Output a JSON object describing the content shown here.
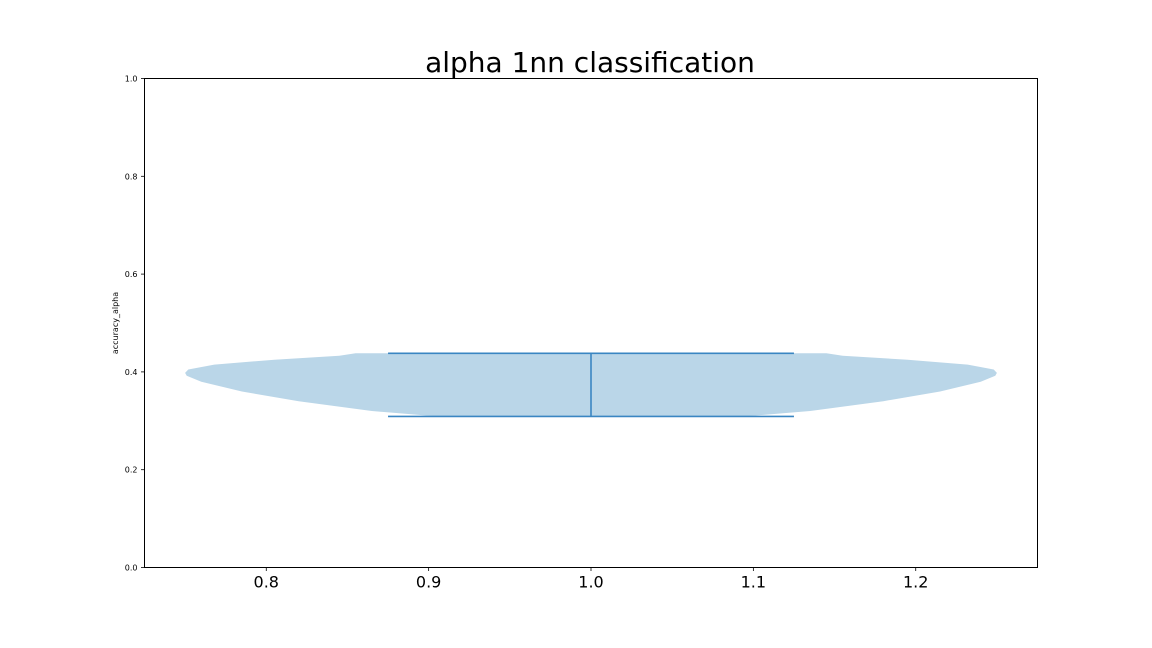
{
  "chart_data": {
    "type": "violin",
    "title": "alpha 1nn classification",
    "xlabel": "",
    "ylabel": "accuracy_alpha",
    "xlim": [
      0.725,
      1.275
    ],
    "ylim": [
      0.0,
      1.0
    ],
    "xticks": [
      0.8,
      0.9,
      1.0,
      1.1,
      1.2
    ],
    "xtick_labels": [
      "0.8",
      "0.9",
      "1.0",
      "1.1",
      "1.2"
    ],
    "yticks": [
      0.0,
      0.2,
      0.4,
      0.6,
      0.8,
      1.0
    ],
    "ytick_labels": [
      "0.0",
      "0.2",
      "0.4",
      "0.6",
      "0.8",
      "1.0"
    ],
    "grid": false,
    "colors": {
      "body": "#bad6e8",
      "lines": "#3a86c2",
      "axes": "#000000"
    },
    "violins": [
      {
        "position": 1.0,
        "min": 0.309,
        "max": 0.438,
        "cap_halfwidth": 0.125,
        "density": [
          [
            0.309,
            0.095
          ],
          [
            0.32,
            0.135
          ],
          [
            0.34,
            0.18
          ],
          [
            0.36,
            0.215
          ],
          [
            0.38,
            0.24
          ],
          [
            0.392,
            0.249
          ],
          [
            0.398,
            0.25
          ],
          [
            0.405,
            0.248
          ],
          [
            0.415,
            0.232
          ],
          [
            0.425,
            0.195
          ],
          [
            0.433,
            0.155
          ],
          [
            0.438,
            0.145
          ]
        ]
      }
    ]
  }
}
